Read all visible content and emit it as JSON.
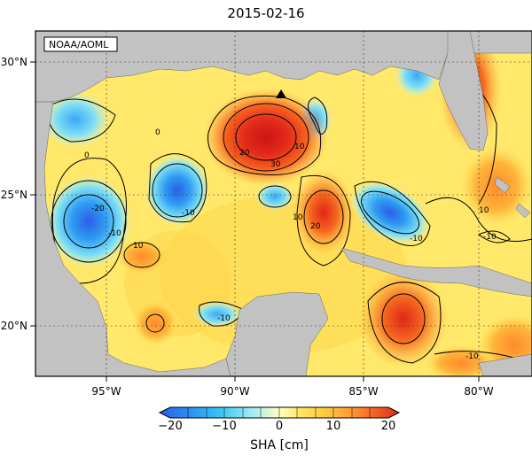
{
  "title": "2015-02-16",
  "credit": "NOAA/AOML",
  "colorbar": {
    "label": "SHA [cm]",
    "ticks": [
      "−20",
      "−10",
      "0",
      "10",
      "20"
    ],
    "colors": [
      "#2a5fe6",
      "#2c8df0",
      "#36b6f6",
      "#5fd6f5",
      "#a8eef7",
      "#fff6a8",
      "#ffe35c",
      "#ffc53d",
      "#ffa037",
      "#ff7a2a",
      "#f25021",
      "#de2a1b"
    ]
  },
  "axes": {
    "lon_ticks": [
      "95°W",
      "90°W",
      "85°W",
      "80°W"
    ],
    "lat_ticks": [
      "30°N",
      "25°N",
      "20°N"
    ]
  },
  "contour_labels": [
    "-20",
    "-10",
    "0",
    "10",
    "20",
    "30",
    "-10",
    "0",
    "10",
    "20",
    "10",
    "-10",
    "-10",
    "-10",
    "10",
    "-10"
  ],
  "colors": {
    "land": "#c2c2c2",
    "ocean": "#ffe86a",
    "marker": "#000000"
  },
  "marker": "triangle"
}
